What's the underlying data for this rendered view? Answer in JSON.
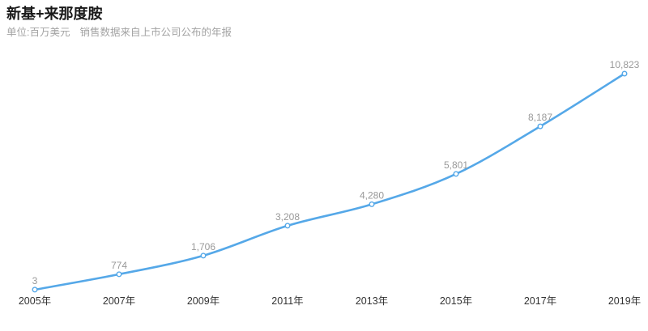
{
  "header": {
    "title": "新基+来那度胺",
    "subtitle_unit": "单位:百万美元",
    "subtitle_source": "销售数据来自上市公司公布的年报"
  },
  "colors": {
    "line": "#55a8e8",
    "marker_fill": "#ffffff",
    "data_label": "#999999",
    "axis_label": "#333333",
    "title": "#1a1a1a",
    "subtitle": "#a3a3a3",
    "background": "#ffffff"
  },
  "chart_data": {
    "type": "line",
    "title": "新基+来那度胺",
    "subtitle": "单位:百万美元 销售数据来自上市公司公布的年报",
    "categories": [
      "2005年",
      "2007年",
      "2009年",
      "2011年",
      "2013年",
      "2015年",
      "2017年",
      "2019年"
    ],
    "values": [
      3,
      774,
      1706,
      3208,
      4280,
      5801,
      8187,
      10823
    ],
    "value_labels": [
      "3",
      "774",
      "1,706",
      "3,208",
      "4,280",
      "5,801",
      "8,187",
      "10,823"
    ],
    "xlabel": "",
    "ylabel": "百万美元",
    "ylim": [
      0,
      12000
    ],
    "smooth": true,
    "grid": false,
    "axis_lines": false,
    "legend": "none"
  }
}
